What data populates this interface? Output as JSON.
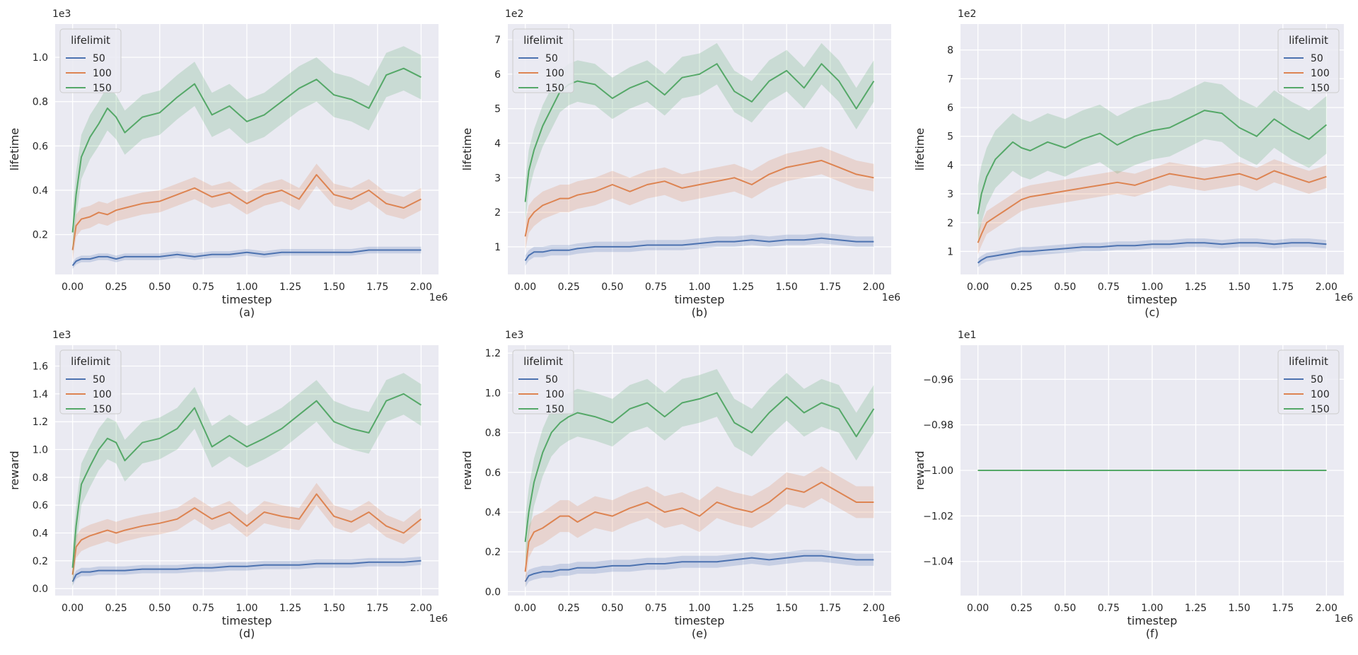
{
  "figure": {
    "legend_title": "lifelimit",
    "x_label": "timestep",
    "x_multiplier": "1e6",
    "x_ticks": [
      "0.00",
      "0.25",
      "0.50",
      "0.75",
      "1.00",
      "1.25",
      "1.50",
      "1.75",
      "2.00"
    ]
  },
  "colors": {
    "50": "#4c72b0",
    "100": "#dd8452",
    "150": "#55a868",
    "panel_bg": "#eaeaf2",
    "grid": "#ffffff"
  },
  "chart_data": [
    {
      "type": "line",
      "caption": "(a)",
      "ylabel": "lifetime",
      "y_multiplier": "1e3",
      "xlim": [
        -0.1,
        2.1
      ],
      "ylim": [
        0.02,
        1.15
      ],
      "yticks": [
        "0.2",
        "0.4",
        "0.6",
        "0.8",
        "1.0"
      ],
      "ytick_values": [
        0.2,
        0.4,
        0.6,
        0.8,
        1.0
      ],
      "legend_position": "top-left",
      "x": [
        0.0,
        0.02,
        0.05,
        0.1,
        0.15,
        0.2,
        0.25,
        0.3,
        0.4,
        0.5,
        0.6,
        0.7,
        0.8,
        0.9,
        1.0,
        1.1,
        1.2,
        1.3,
        1.4,
        1.5,
        1.6,
        1.7,
        1.8,
        1.9,
        2.0
      ],
      "series": [
        {
          "name": "50",
          "values": [
            0.06,
            0.08,
            0.09,
            0.09,
            0.1,
            0.1,
            0.09,
            0.1,
            0.1,
            0.1,
            0.11,
            0.1,
            0.11,
            0.11,
            0.12,
            0.11,
            0.12,
            0.12,
            0.12,
            0.12,
            0.12,
            0.13,
            0.13,
            0.13,
            0.13
          ],
          "band": 0.015
        },
        {
          "name": "100",
          "values": [
            0.13,
            0.24,
            0.27,
            0.28,
            0.3,
            0.29,
            0.31,
            0.32,
            0.34,
            0.35,
            0.38,
            0.41,
            0.37,
            0.39,
            0.34,
            0.38,
            0.4,
            0.36,
            0.47,
            0.38,
            0.36,
            0.4,
            0.34,
            0.32,
            0.36
          ],
          "band": 0.05
        },
        {
          "name": "150",
          "values": [
            0.21,
            0.38,
            0.55,
            0.64,
            0.7,
            0.77,
            0.73,
            0.66,
            0.73,
            0.75,
            0.82,
            0.88,
            0.74,
            0.78,
            0.71,
            0.74,
            0.8,
            0.86,
            0.9,
            0.83,
            0.81,
            0.77,
            0.92,
            0.95,
            0.91
          ],
          "band": 0.1
        }
      ]
    },
    {
      "type": "line",
      "caption": "(b)",
      "ylabel": "lifetime",
      "y_multiplier": "1e2",
      "xlim": [
        -0.1,
        2.1
      ],
      "ylim": [
        0.2,
        7.45
      ],
      "yticks": [
        "1",
        "2",
        "3",
        "4",
        "5",
        "6",
        "7"
      ],
      "ytick_values": [
        1,
        2,
        3,
        4,
        5,
        6,
        7
      ],
      "legend_position": "top-left",
      "x": [
        0.0,
        0.02,
        0.05,
        0.1,
        0.15,
        0.2,
        0.25,
        0.3,
        0.4,
        0.5,
        0.6,
        0.7,
        0.8,
        0.9,
        1.0,
        1.1,
        1.2,
        1.3,
        1.4,
        1.5,
        1.6,
        1.7,
        1.8,
        1.9,
        2.0
      ],
      "series": [
        {
          "name": "50",
          "values": [
            0.6,
            0.75,
            0.85,
            0.85,
            0.9,
            0.9,
            0.9,
            0.95,
            1.0,
            1.0,
            1.0,
            1.05,
            1.05,
            1.05,
            1.1,
            1.15,
            1.15,
            1.2,
            1.15,
            1.2,
            1.2,
            1.25,
            1.2,
            1.15,
            1.15
          ],
          "band": 0.15
        },
        {
          "name": "100",
          "values": [
            1.3,
            1.8,
            2.0,
            2.2,
            2.3,
            2.4,
            2.4,
            2.5,
            2.6,
            2.8,
            2.6,
            2.8,
            2.9,
            2.7,
            2.8,
            2.9,
            3.0,
            2.8,
            3.1,
            3.3,
            3.4,
            3.5,
            3.3,
            3.1,
            3.0
          ],
          "band": 0.4
        },
        {
          "name": "150",
          "values": [
            2.3,
            3.2,
            3.8,
            4.5,
            5.0,
            5.5,
            5.7,
            5.8,
            5.7,
            5.3,
            5.6,
            5.8,
            5.4,
            5.9,
            6.0,
            6.3,
            5.5,
            5.2,
            5.8,
            6.1,
            5.6,
            6.3,
            5.8,
            5.0,
            5.8
          ],
          "band": 0.6
        }
      ]
    },
    {
      "type": "line",
      "caption": "(c)",
      "ylabel": "lifetime",
      "y_multiplier": "1e2",
      "xlim": [
        -0.1,
        2.1
      ],
      "ylim": [
        0.2,
        8.9
      ],
      "yticks": [
        "1",
        "2",
        "3",
        "4",
        "5",
        "6",
        "7",
        "8"
      ],
      "ytick_values": [
        1,
        2,
        3,
        4,
        5,
        6,
        7,
        8
      ],
      "legend_position": "top-right",
      "x": [
        0.0,
        0.02,
        0.05,
        0.1,
        0.15,
        0.2,
        0.25,
        0.3,
        0.4,
        0.5,
        0.6,
        0.7,
        0.8,
        0.9,
        1.0,
        1.1,
        1.2,
        1.3,
        1.4,
        1.5,
        1.6,
        1.7,
        1.8,
        1.9,
        2.0
      ],
      "series": [
        {
          "name": "50",
          "values": [
            0.6,
            0.7,
            0.8,
            0.85,
            0.9,
            0.95,
            1.0,
            1.0,
            1.05,
            1.1,
            1.15,
            1.15,
            1.2,
            1.2,
            1.25,
            1.25,
            1.3,
            1.3,
            1.25,
            1.3,
            1.3,
            1.25,
            1.3,
            1.3,
            1.25
          ],
          "band": 0.15
        },
        {
          "name": "100",
          "values": [
            1.3,
            1.6,
            2.0,
            2.2,
            2.4,
            2.6,
            2.8,
            2.9,
            3.0,
            3.1,
            3.2,
            3.3,
            3.4,
            3.3,
            3.5,
            3.7,
            3.6,
            3.5,
            3.6,
            3.7,
            3.5,
            3.8,
            3.6,
            3.4,
            3.6
          ],
          "band": 0.4
        },
        {
          "name": "150",
          "values": [
            2.3,
            3.0,
            3.6,
            4.2,
            4.5,
            4.8,
            4.6,
            4.5,
            4.8,
            4.6,
            4.9,
            5.1,
            4.7,
            5.0,
            5.2,
            5.3,
            5.6,
            5.9,
            5.8,
            5.3,
            5.0,
            5.6,
            5.2,
            4.9,
            5.4
          ],
          "band": 1.0
        }
      ]
    },
    {
      "type": "line",
      "caption": "(d)",
      "ylabel": "reward",
      "y_multiplier": "1e3",
      "xlim": [
        -0.1,
        2.1
      ],
      "ylim": [
        -0.05,
        1.75
      ],
      "yticks": [
        "0.0",
        "0.2",
        "0.4",
        "0.6",
        "0.8",
        "1.0",
        "1.2",
        "1.4",
        "1.6"
      ],
      "ytick_values": [
        0.0,
        0.2,
        0.4,
        0.6,
        0.8,
        1.0,
        1.2,
        1.4,
        1.6
      ],
      "legend_position": "top-left",
      "x": [
        0.0,
        0.02,
        0.05,
        0.1,
        0.15,
        0.2,
        0.25,
        0.3,
        0.4,
        0.5,
        0.6,
        0.7,
        0.8,
        0.9,
        1.0,
        1.1,
        1.2,
        1.3,
        1.4,
        1.5,
        1.6,
        1.7,
        1.8,
        1.9,
        2.0
      ],
      "series": [
        {
          "name": "50",
          "values": [
            0.05,
            0.1,
            0.12,
            0.12,
            0.13,
            0.13,
            0.13,
            0.13,
            0.14,
            0.14,
            0.14,
            0.15,
            0.15,
            0.16,
            0.16,
            0.17,
            0.17,
            0.17,
            0.18,
            0.18,
            0.18,
            0.19,
            0.19,
            0.19,
            0.2
          ],
          "band": 0.03
        },
        {
          "name": "100",
          "values": [
            0.1,
            0.3,
            0.35,
            0.38,
            0.4,
            0.42,
            0.4,
            0.42,
            0.45,
            0.47,
            0.5,
            0.58,
            0.5,
            0.55,
            0.45,
            0.55,
            0.52,
            0.5,
            0.68,
            0.52,
            0.48,
            0.55,
            0.45,
            0.4,
            0.5
          ],
          "band": 0.08
        },
        {
          "name": "150",
          "values": [
            0.15,
            0.45,
            0.75,
            0.88,
            1.0,
            1.08,
            1.05,
            0.92,
            1.05,
            1.08,
            1.15,
            1.3,
            1.02,
            1.1,
            1.02,
            1.08,
            1.15,
            1.25,
            1.35,
            1.2,
            1.15,
            1.12,
            1.35,
            1.4,
            1.32
          ],
          "band": 0.15
        }
      ]
    },
    {
      "type": "line",
      "caption": "(e)",
      "ylabel": "reward",
      "y_multiplier": "1e3",
      "xlim": [
        -0.1,
        2.1
      ],
      "ylim": [
        -0.02,
        1.24
      ],
      "yticks": [
        "0.0",
        "0.2",
        "0.4",
        "0.6",
        "0.8",
        "1.0",
        "1.2"
      ],
      "ytick_values": [
        0.0,
        0.2,
        0.4,
        0.6,
        0.8,
        1.0,
        1.2
      ],
      "legend_position": "top-left",
      "x": [
        0.0,
        0.02,
        0.05,
        0.1,
        0.15,
        0.2,
        0.25,
        0.3,
        0.4,
        0.5,
        0.6,
        0.7,
        0.8,
        0.9,
        1.0,
        1.1,
        1.2,
        1.3,
        1.4,
        1.5,
        1.6,
        1.7,
        1.8,
        1.9,
        2.0
      ],
      "series": [
        {
          "name": "50",
          "values": [
            0.05,
            0.08,
            0.09,
            0.1,
            0.1,
            0.11,
            0.11,
            0.12,
            0.12,
            0.13,
            0.13,
            0.14,
            0.14,
            0.15,
            0.15,
            0.15,
            0.16,
            0.17,
            0.16,
            0.17,
            0.18,
            0.18,
            0.17,
            0.16,
            0.16
          ],
          "band": 0.03
        },
        {
          "name": "100",
          "values": [
            0.1,
            0.25,
            0.3,
            0.32,
            0.35,
            0.38,
            0.38,
            0.35,
            0.4,
            0.38,
            0.42,
            0.45,
            0.4,
            0.42,
            0.38,
            0.45,
            0.42,
            0.4,
            0.45,
            0.52,
            0.5,
            0.55,
            0.5,
            0.45,
            0.45
          ],
          "band": 0.08
        },
        {
          "name": "150",
          "values": [
            0.25,
            0.4,
            0.55,
            0.7,
            0.8,
            0.85,
            0.88,
            0.9,
            0.88,
            0.85,
            0.92,
            0.95,
            0.88,
            0.95,
            0.97,
            1.0,
            0.85,
            0.8,
            0.9,
            0.98,
            0.9,
            0.95,
            0.92,
            0.78,
            0.92
          ],
          "band": 0.12
        }
      ]
    },
    {
      "type": "line",
      "caption": "(f)",
      "ylabel": "reward",
      "y_multiplier": "1e1",
      "xlim": [
        -0.1,
        2.1
      ],
      "ylim": [
        -1.055,
        -0.945
      ],
      "yticks": [
        "−1.04",
        "−1.02",
        "−1.00",
        "−0.98",
        "−0.96"
      ],
      "ytick_values": [
        -1.04,
        -1.02,
        -1.0,
        -0.98,
        -0.96
      ],
      "legend_position": "top-right",
      "x": [
        0.0,
        2.0
      ],
      "series": [
        {
          "name": "50",
          "values": [
            -1.0,
            -1.0
          ],
          "band": 0
        },
        {
          "name": "100",
          "values": [
            -1.0,
            -1.0
          ],
          "band": 0
        },
        {
          "name": "150",
          "values": [
            -1.0,
            -1.0
          ],
          "band": 0
        }
      ]
    }
  ]
}
